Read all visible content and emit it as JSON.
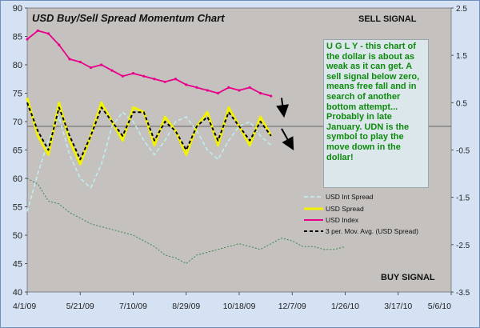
{
  "chart_data": {
    "type": "line",
    "title": "USD Buy/Sell Spread Momentum Chart",
    "annotations": {
      "top_right": "SELL SIGNAL",
      "bottom_right": "BUY SIGNAL",
      "note": "U G L Y - this chart of the dollar is about as weak as it can get.  A sell signal below zero, means free fall and in search of another bottom attempt... Probably in late January.  UDN is the symbol to play the move down in the dollar!"
    },
    "x_dates": [
      "4/1/09",
      "4/11/09",
      "4/21/09",
      "5/1/09",
      "5/11/09",
      "5/21/09",
      "5/31/09",
      "6/10/09",
      "6/20/09",
      "6/30/09",
      "7/10/09",
      "7/20/09",
      "7/30/09",
      "8/9/09",
      "8/19/09",
      "8/29/09",
      "9/8/09",
      "9/18/09",
      "9/28/09",
      "10/8/09",
      "10/18/09",
      "10/28/09",
      "11/7/09",
      "11/17/09",
      "11/27/09",
      "12/7/09",
      "12/17/09",
      "12/27/09",
      "1/6/10",
      "1/16/10",
      "1/26/10",
      "2/5/10",
      "2/15/10",
      "2/25/10",
      "3/7/10",
      "3/17/10"
    ],
    "x_tick_labels": [
      "4/1/09",
      "5/21/09",
      "7/10/09",
      "8/29/09",
      "10/18/09",
      "12/7/09",
      "1/26/10",
      "3/17/10",
      "5/6/10"
    ],
    "ylim_left": [
      40,
      90
    ],
    "yticks_left": [
      "40",
      "45",
      "50",
      "55",
      "60",
      "65",
      "70",
      "75",
      "80",
      "85",
      "90"
    ],
    "ylim_right": [
      -3.5,
      2.5
    ],
    "yticks_right": [
      "2.5",
      "1.5",
      "0.5",
      "-0.5",
      "-1.5",
      "-2.5",
      "-3.5"
    ],
    "yticks_right_at": [
      2.5,
      1.5,
      0.5,
      -0.5,
      -1.5,
      -2.5,
      -3.5
    ],
    "zero_line": 0,
    "series": [
      {
        "name": "USD Int Spread",
        "color": "#bfeef0",
        "dash": "5,3",
        "axis": "right",
        "values": [
          -1.8,
          -1.0,
          -0.3,
          0.2,
          -0.6,
          -1.1,
          -1.3,
          -0.8,
          0.0,
          0.3,
          0.1,
          -0.3,
          -0.6,
          -0.3,
          0.1,
          0.2,
          -0.1,
          -0.5,
          -0.7,
          -0.3,
          0.0,
          0.1,
          -0.2,
          -0.4
        ]
      },
      {
        "name": "USD Spread",
        "color": "#f2f200",
        "axis": "right",
        "values": [
          0.6,
          -0.2,
          -0.6,
          0.5,
          -0.3,
          -0.8,
          -0.2,
          0.5,
          0.1,
          -0.3,
          0.4,
          0.3,
          -0.4,
          0.2,
          -0.1,
          -0.6,
          0.0,
          0.3,
          -0.4,
          0.4,
          0.0,
          -0.4,
          0.2,
          -0.2
        ]
      },
      {
        "name": "USD Index",
        "color": "#e8008a",
        "axis": "left",
        "values": [
          84.5,
          86.0,
          85.5,
          83.5,
          81.0,
          80.5,
          79.5,
          80.0,
          79.0,
          78.0,
          78.5,
          78.0,
          77.5,
          77.0,
          77.5,
          76.5,
          76.0,
          75.5,
          75.0,
          76.0,
          75.5,
          76.0,
          75.0,
          74.5
        ]
      },
      {
        "name": "3 per. Mov. Avg. (USD Spread)",
        "color": "#000000",
        "dash": "4,3",
        "axis": "right",
        "values": [
          0.5,
          -0.1,
          -0.5,
          0.4,
          -0.2,
          -0.7,
          -0.2,
          0.4,
          0.1,
          -0.2,
          0.3,
          0.3,
          -0.3,
          0.1,
          -0.1,
          -0.5,
          0.0,
          0.2,
          -0.3,
          0.3,
          0.0,
          -0.3,
          0.1,
          -0.2
        ]
      },
      {
        "name": "",
        "color": "#3a8a50",
        "dash": "2,2",
        "axis": "left",
        "values": [
          60.0,
          59.0,
          56.0,
          55.5,
          54.0,
          53.0,
          52.0,
          51.5,
          51.0,
          50.5,
          50.0,
          49.0,
          48.0,
          46.5,
          46.0,
          45.0,
          46.5,
          47.0,
          47.5,
          48.0,
          48.5,
          48.0,
          47.5,
          48.5,
          49.5,
          49.0,
          48.0,
          48.0,
          47.5,
          47.5,
          48.0
        ]
      }
    ],
    "arrows": [
      {
        "from": [
          "11/27/09",
          0.6
        ],
        "to": [
          "11/29/09",
          0.25
        ]
      },
      {
        "from": [
          "11/27/09",
          -0.05
        ],
        "to": [
          "12/7/09",
          -0.45
        ]
      }
    ],
    "legend_position": "bottom-right",
    "grid": false
  }
}
